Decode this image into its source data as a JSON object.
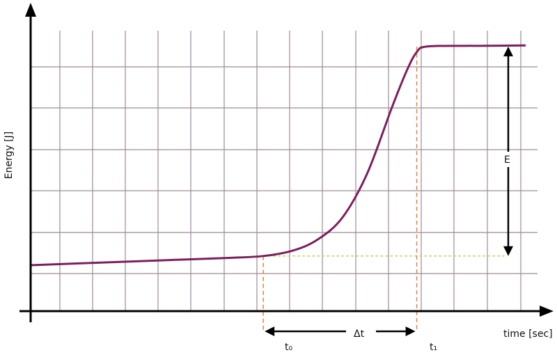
{
  "chart_data": {
    "type": "line",
    "title": "",
    "xlabel": "time [sec]",
    "ylabel": "Energy [J]",
    "grid": true,
    "x_ticks_shown": false,
    "y_ticks_shown": false,
    "series": [
      {
        "values": [
          [
            0.0,
            0.5
          ],
          [
            2.0,
            0.6
          ],
          [
            3.0,
            0.65
          ],
          [
            4.0,
            0.7
          ],
          [
            4.7,
            0.75
          ],
          [
            5.3,
            0.9
          ],
          [
            5.8,
            1.2
          ],
          [
            6.3,
            1.8
          ],
          [
            6.8,
            3.0
          ],
          [
            7.3,
            4.8
          ],
          [
            7.6,
            5.8
          ],
          [
            7.8,
            6.3
          ],
          [
            8.0,
            6.45
          ],
          [
            8.8,
            6.47
          ],
          [
            9.0,
            6.47
          ],
          [
            10.0,
            6.48
          ]
        ]
      }
    ],
    "xlim": [
      0,
      10
    ],
    "ylim": [
      -0.75,
      7.3
    ],
    "baseline_energy": 0.75,
    "annotations": {
      "t0": {
        "label": "t₀",
        "x": 4.7
      },
      "t1": {
        "label": "t₁",
        "x": 7.8
      },
      "delta_t": {
        "label": "Δt",
        "from": 4.7,
        "to": 7.8
      },
      "energy": {
        "label": "E",
        "from": 0.75,
        "to": 6.45,
        "x": 9.5
      }
    },
    "colors": {
      "curve": "#7b1f5e",
      "grid": "#9c8a98",
      "marker_lines": "#e6823a",
      "baseline": "#c9cf6a",
      "axes": "#000000"
    }
  }
}
